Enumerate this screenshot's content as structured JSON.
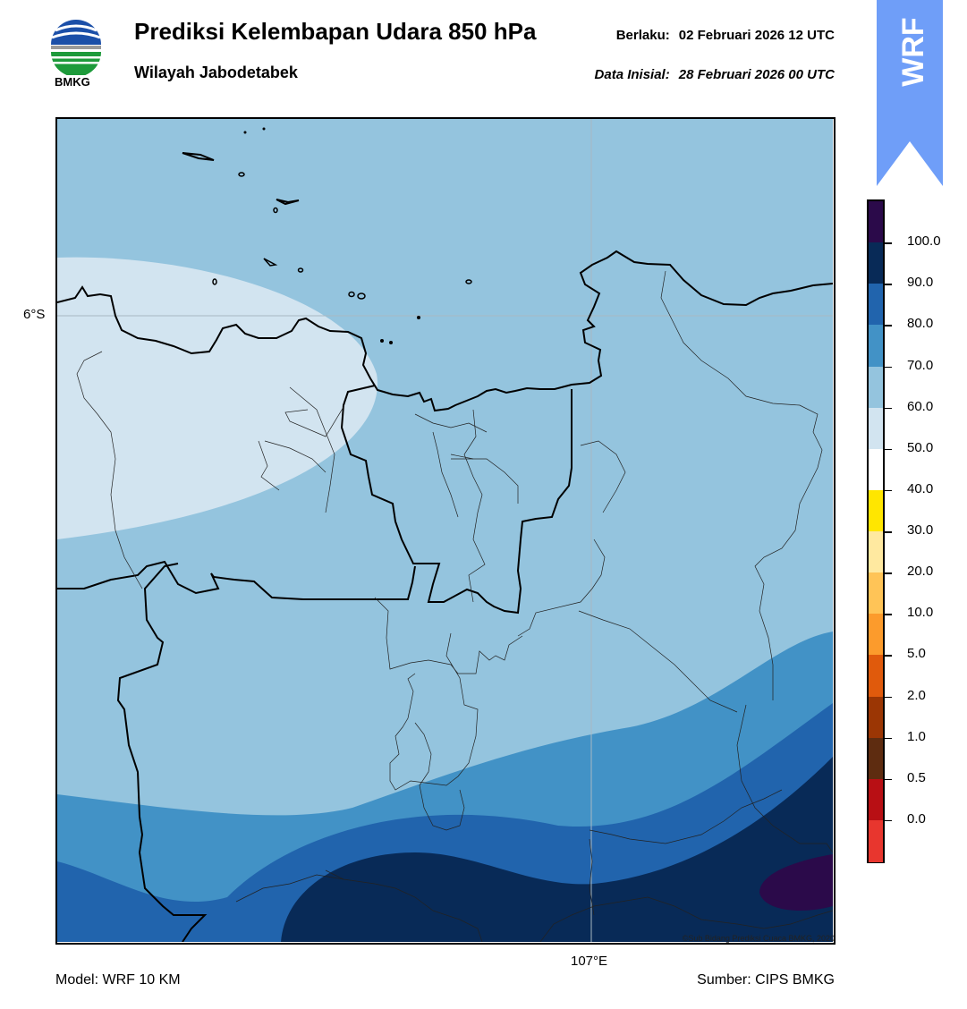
{
  "header": {
    "title": "Prediksi Kelembapan Udara 850 hPa",
    "subtitle": "Wilayah Jabodetabek",
    "valid_label": "Berlaku:",
    "valid_value": "02 Februari 2026 12 UTC",
    "init_label": "Data Inisial:",
    "init_value": "28 Februari 2026 00 UTC"
  },
  "logo": {
    "icon": "bmkg-logo-icon",
    "text": "BMKG"
  },
  "badge": {
    "text": "WRF",
    "color": "#6f9ef8"
  },
  "map": {
    "lat_label": "6°S",
    "lon_label": "107°E",
    "copyright": "©Sub Bidang Prediksi Cuaca BMKG, 2020"
  },
  "colorbar": {
    "labels": [
      "100.0",
      "90.0",
      "80.0",
      "70.0",
      "60.0",
      "50.0",
      "40.0",
      "30.0",
      "20.0",
      "10.0",
      "5.0",
      "2.0",
      "1.0",
      "0.5",
      "0.0"
    ],
    "colors": [
      "#2b0a4a",
      "#082a57",
      "#2164ad",
      "#4292c6",
      "#94c4de",
      "#d2e4f0",
      "#ffffff",
      "#ffe600",
      "#ffe9a0",
      "#ffc457",
      "#fc9b2c",
      "#e05a0c",
      "#9b3604",
      "#5e2c10",
      "#b80f14",
      "#e8362e"
    ]
  },
  "footer": {
    "model": "Model: WRF 10 KM",
    "source": "Sumber: CIPS BMKG"
  }
}
